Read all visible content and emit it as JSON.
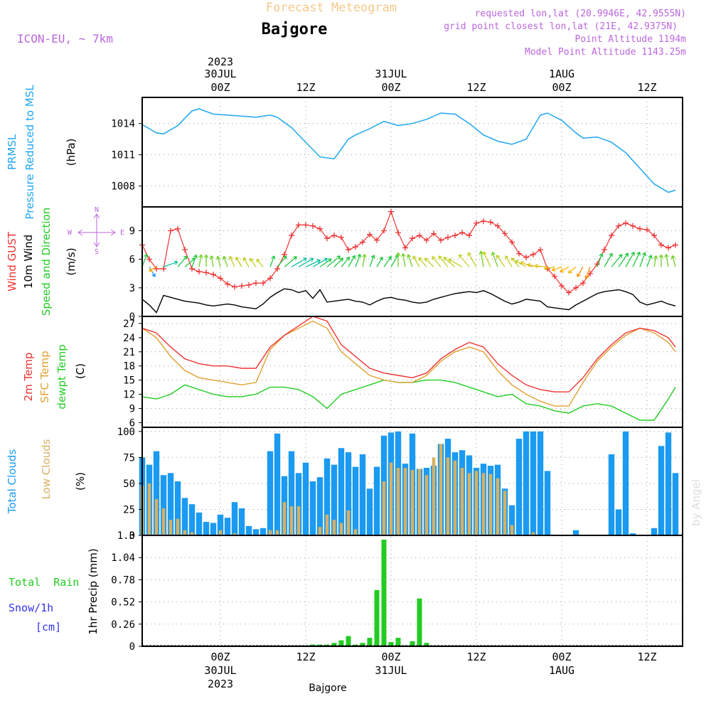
{
  "header": {
    "title": "Forecast Meteogram",
    "location": "Bajgore",
    "model": "ICON-EU, ~ 7km",
    "requested": "requested lon,lat (20.9946E, 42.9555N)",
    "grid_point": "grid point closest lon,lat (21E, 42.9375N)",
    "point_alt": "Point Altitude 1194m",
    "model_alt": "Model Point Altitude 1143.25m",
    "footer": "Bajgore",
    "watermark": "by Angel"
  },
  "time_axis": {
    "top_year": "2023",
    "top_labels": [
      "30JUL\n00Z",
      "12Z",
      "31JUL\n00Z",
      "12Z",
      "1AUG\n00Z",
      "12Z"
    ],
    "bottom_labels": [
      "00Z\n30JUL\n2023",
      "12Z",
      "00Z\n31JUL",
      "12Z",
      "00Z\n1AUG",
      "12Z"
    ],
    "hours": [
      0,
      12,
      24,
      36,
      48,
      60
    ],
    "start_hour": -11,
    "end_hour": 65
  },
  "colors": {
    "pressure": "#1ea7f0",
    "gust": "#ee3333",
    "wind10": "#000000",
    "t2m": "#ee3333",
    "tsfc": "#e0a030",
    "dewpt": "#22cc22",
    "total_clouds": "#1a9af0",
    "low_clouds": "#d8b060",
    "rain": "#22cc22",
    "snow": "#3333ee",
    "label_purple": "#bb66dd",
    "title_orange": "#f5c88a"
  },
  "panels": {
    "pressure": {
      "labels": [
        "PRMSL",
        "Pressure Reduced to MSL",
        "(hPa)"
      ],
      "ticks": [
        "1008",
        "1011",
        "1014"
      ]
    },
    "wind": {
      "labels": [
        "Wind GUST",
        "10m Wind",
        "Speed and Direction",
        "(m/s)"
      ],
      "ticks": [
        "0",
        "3",
        "6",
        "9"
      ],
      "compass": {
        "n": "N",
        "s": "S",
        "e": "E",
        "w": "W"
      }
    },
    "temp": {
      "labels": [
        "2m Temp",
        "SFC Temp",
        "dewpt Temp",
        "(C)"
      ],
      "ticks": [
        "6",
        "9",
        "12",
        "15",
        "18",
        "21",
        "24",
        "27"
      ]
    },
    "clouds": {
      "labels": [
        "Total Clouds",
        "Low Clouds",
        "(%)"
      ],
      "ticks": [
        "0",
        "25",
        "50",
        "75",
        "100"
      ]
    },
    "precip": {
      "labels": [
        "Total  Rain",
        "Snow/1h",
        "[cm]",
        "1hr Precip (mm)"
      ],
      "ticks": [
        "0",
        "0.26",
        "0.52",
        "0.78",
        "1.04",
        "1.3"
      ]
    }
  },
  "chart_data": [
    {
      "type": "line",
      "title": "Pressure Reduced to MSL",
      "ylabel": "(hPa)",
      "ylim": [
        1006,
        1016.5
      ],
      "x_hours": [
        -11,
        -10,
        -9,
        -8,
        -6,
        -4,
        -3,
        -1,
        1,
        3,
        5,
        7,
        8,
        10,
        12,
        14,
        16,
        18,
        19,
        21,
        23,
        25,
        27,
        29,
        31,
        33,
        35,
        37,
        39,
        41,
        43,
        45,
        46,
        48,
        50,
        51,
        53,
        55,
        57,
        59,
        61,
        63,
        64
      ],
      "series": [
        {
          "name": "PRMSL",
          "values": [
            1013.9,
            1013.5,
            1013.1,
            1013.0,
            1013.8,
            1015.2,
            1015.4,
            1014.9,
            1014.8,
            1014.7,
            1014.6,
            1014.8,
            1014.6,
            1013.6,
            1012.2,
            1010.8,
            1010.6,
            1012.5,
            1012.9,
            1013.5,
            1014.2,
            1013.8,
            1014.0,
            1014.4,
            1015.0,
            1014.9,
            1014.0,
            1012.9,
            1012.3,
            1012.0,
            1012.5,
            1014.8,
            1015.0,
            1014.3,
            1013.1,
            1012.6,
            1012.7,
            1012.2,
            1011.2,
            1009.7,
            1008.2,
            1007.4,
            1007.6
          ]
        }
      ]
    },
    {
      "type": "line",
      "title": "Wind GUST / 10m Wind Speed and Direction",
      "ylabel": "(m/s)",
      "ylim": [
        0,
        11.5
      ],
      "x_hours": [
        -11,
        -10,
        -9,
        -8,
        -7,
        -6,
        -5,
        -4,
        -3,
        -2,
        -1,
        0,
        1,
        2,
        3,
        4,
        5,
        6,
        7,
        8,
        9,
        10,
        11,
        12,
        13,
        14,
        15,
        16,
        17,
        18,
        19,
        20,
        21,
        22,
        23,
        24,
        25,
        26,
        27,
        28,
        29,
        30,
        31,
        32,
        33,
        34,
        35,
        36,
        37,
        38,
        39,
        40,
        41,
        42,
        43,
        44,
        45,
        46,
        47,
        48,
        49,
        50,
        51,
        52,
        53,
        54,
        55,
        56,
        57,
        58,
        59,
        60,
        61,
        62,
        63,
        64
      ],
      "series": [
        {
          "name": "Wind GUST",
          "values": [
            7.5,
            6.0,
            5.0,
            5.0,
            9.0,
            9.2,
            7.0,
            5.0,
            4.7,
            4.6,
            4.4,
            4.0,
            3.4,
            3.1,
            3.2,
            3.3,
            3.5,
            3.5,
            4.0,
            5.0,
            6.5,
            8.5,
            9.6,
            9.6,
            9.5,
            9.2,
            8.2,
            8.5,
            8.3,
            7.0,
            7.3,
            7.8,
            8.6,
            8.0,
            9.0,
            11.0,
            8.8,
            7.2,
            8.2,
            8.5,
            8.0,
            8.7,
            8.0,
            8.3,
            8.5,
            8.8,
            8.5,
            9.8,
            10.0,
            9.9,
            9.5,
            8.7,
            7.8,
            6.6,
            6.2,
            6.5,
            7.0,
            5.0,
            4.2,
            3.2,
            2.5,
            3.0,
            3.5,
            4.5,
            5.5,
            7.0,
            8.5,
            9.5,
            9.8,
            9.5,
            9.2,
            9.1,
            8.5,
            7.5,
            7.2,
            7.5
          ]
        },
        {
          "name": "10m Wind",
          "values": [
            1.8,
            1.2,
            0.4,
            2.2,
            2.0,
            1.8,
            1.6,
            1.5,
            1.4,
            1.2,
            1.1,
            1.2,
            1.3,
            1.2,
            1.0,
            0.9,
            0.8,
            1.3,
            2.0,
            2.5,
            2.9,
            2.8,
            2.5,
            2.7,
            1.9,
            2.8,
            1.5,
            1.6,
            1.7,
            1.8,
            1.6,
            1.5,
            1.2,
            1.6,
            1.9,
            2.0,
            1.8,
            1.7,
            1.5,
            1.4,
            1.5,
            1.8,
            2.0,
            2.2,
            2.4,
            2.5,
            2.6,
            2.5,
            2.7,
            2.4,
            2.0,
            1.6,
            1.3,
            1.5,
            1.8,
            1.7,
            1.6,
            1.0,
            0.9,
            0.8,
            0.7,
            1.2,
            1.6,
            2.0,
            2.4,
            2.6,
            2.7,
            2.8,
            2.6,
            2.3,
            1.5,
            1.2,
            1.4,
            1.6,
            1.3,
            1.1
          ]
        }
      ],
      "direction_arrows_hours": [
        -11,
        -10,
        -9,
        -8,
        -6,
        -5,
        -4,
        -3,
        -2,
        -1,
        0,
        1,
        2,
        3,
        4,
        5,
        6,
        7,
        8,
        9,
        10,
        11,
        12,
        13,
        14,
        15,
        16,
        17,
        18,
        19,
        20,
        21,
        22,
        23,
        24,
        25,
        26,
        27,
        28,
        29,
        30,
        31,
        32,
        33,
        34,
        35,
        36,
        37,
        38,
        39,
        40,
        41,
        42,
        43,
        44,
        45,
        46,
        47,
        48,
        49,
        50,
        51,
        52,
        53,
        54,
        55,
        56,
        57,
        58,
        59,
        60,
        61,
        62,
        63,
        64
      ],
      "direction_arrows_deg": [
        200,
        330,
        60,
        250,
        220,
        230,
        200,
        190,
        180,
        170,
        165,
        160,
        155,
        150,
        150,
        145,
        140,
        200,
        220,
        230,
        240,
        240,
        245,
        240,
        235,
        230,
        225,
        220,
        210,
        200,
        190,
        200,
        210,
        215,
        210,
        180,
        170,
        160,
        150,
        140,
        135,
        140,
        140,
        130,
        120,
        140,
        150,
        170,
        155,
        160,
        145,
        150,
        140,
        120,
        110,
        100,
        95,
        80,
        70,
        60,
        50,
        30,
        20,
        200,
        210,
        220,
        215,
        210,
        205,
        200,
        200,
        190,
        180,
        170,
        165,
        160
      ]
    },
    {
      "type": "line",
      "title": "2m Temp / SFC Temp / dewpt Temp",
      "ylabel": "(C)",
      "ylim": [
        5,
        28.5
      ],
      "x_hours": [
        -11,
        -9,
        -7,
        -5,
        -3,
        -1,
        1,
        3,
        5,
        7,
        9,
        11,
        13,
        15,
        17,
        19,
        21,
        23,
        25,
        27,
        29,
        31,
        33,
        35,
        37,
        39,
        41,
        43,
        45,
        47,
        49,
        51,
        53,
        55,
        57,
        59,
        61,
        63,
        64
      ],
      "series": [
        {
          "name": "2m Temp",
          "values": [
            26.0,
            25.0,
            22.0,
            19.5,
            18.5,
            18.0,
            18.0,
            17.5,
            17.5,
            22.0,
            24.5,
            26.5,
            28.5,
            27.5,
            22.5,
            20.0,
            17.5,
            16.5,
            16.0,
            15.5,
            16.5,
            19.5,
            21.5,
            23.0,
            22.0,
            18.5,
            16.0,
            14.0,
            13.0,
            12.5,
            12.5,
            15.5,
            19.5,
            22.5,
            25.0,
            26.0,
            25.5,
            24.0,
            22.0
          ]
        },
        {
          "name": "SFC Temp",
          "values": [
            26.0,
            24.0,
            20.0,
            17.0,
            15.5,
            15.0,
            14.5,
            14.0,
            14.5,
            21.5,
            24.5,
            26.0,
            27.5,
            26.0,
            21.0,
            18.5,
            16.0,
            15.0,
            14.5,
            14.5,
            16.0,
            19.0,
            21.0,
            22.0,
            21.0,
            17.0,
            14.0,
            12.0,
            10.5,
            9.5,
            9.5,
            14.5,
            19.0,
            22.0,
            24.5,
            26.0,
            25.0,
            23.0,
            21.0
          ]
        },
        {
          "name": "dewpt Temp",
          "values": [
            11.5,
            11.0,
            12.0,
            14.0,
            13.0,
            12.0,
            11.5,
            11.5,
            12.0,
            13.5,
            13.5,
            13.0,
            11.5,
            9.0,
            12.0,
            13.0,
            14.0,
            15.0,
            14.5,
            14.5,
            15.0,
            15.0,
            14.5,
            13.5,
            12.5,
            11.5,
            12.0,
            10.0,
            9.5,
            8.5,
            8.0,
            9.5,
            10.0,
            9.5,
            8.0,
            6.5,
            6.5,
            11.0,
            13.5
          ]
        }
      ]
    },
    {
      "type": "bar",
      "title": "Total Clouds / Low Clouds",
      "ylabel": "(%)",
      "ylim": [
        0,
        100
      ],
      "x_hours": [
        -11,
        -10,
        -9,
        -8,
        -7,
        -6,
        -5,
        -4,
        -3,
        -2,
        -1,
        0,
        1,
        2,
        3,
        4,
        5,
        6,
        7,
        8,
        9,
        10,
        11,
        12,
        13,
        14,
        15,
        16,
        17,
        18,
        19,
        20,
        21,
        22,
        23,
        24,
        25,
        26,
        27,
        28,
        29,
        30,
        31,
        32,
        33,
        34,
        35,
        36,
        37,
        38,
        39,
        40,
        41,
        42,
        43,
        44,
        45,
        46,
        47,
        48,
        49,
        50,
        51,
        52,
        53,
        54,
        55,
        56,
        57,
        58,
        59,
        60,
        61,
        62,
        63,
        64
      ],
      "series": [
        {
          "name": "Total Clouds",
          "values": [
            75,
            68,
            81,
            58,
            60,
            52,
            36,
            30,
            22,
            13,
            12,
            20,
            17,
            32,
            26,
            9,
            6,
            7,
            81,
            98,
            57,
            81,
            60,
            70,
            52,
            56,
            74,
            68,
            84,
            80,
            66,
            78,
            45,
            66,
            96,
            99,
            100,
            69,
            98,
            64,
            65,
            67,
            88,
            93,
            80,
            82,
            77,
            65,
            69,
            67,
            68,
            45,
            29,
            93,
            100,
            100,
            100,
            62,
            0,
            0,
            0,
            5,
            0,
            0,
            0,
            0,
            78,
            25,
            100,
            2,
            0,
            0,
            7,
            86,
            99,
            60
          ]
        },
        {
          "name": "Low Clouds",
          "values": [
            48,
            50,
            35,
            26,
            15,
            16,
            5,
            3,
            0,
            0,
            0,
            5,
            0,
            2,
            0,
            0,
            0,
            0,
            5,
            5,
            32,
            28,
            28,
            0,
            0,
            8,
            20,
            15,
            12,
            24,
            6,
            0,
            0,
            0,
            52,
            70,
            65,
            65,
            63,
            64,
            58,
            75,
            88,
            75,
            72,
            65,
            60,
            62,
            60,
            59,
            55,
            43,
            10,
            0,
            0,
            3,
            0,
            0,
            0,
            0,
            0,
            0,
            0,
            0,
            0,
            0,
            0,
            0,
            0,
            0,
            0,
            0,
            0,
            0,
            0,
            0
          ]
        }
      ]
    },
    {
      "type": "bar",
      "title": "1hr Precip",
      "ylabel": "1hr Precip (mm)",
      "ylim": [
        0,
        1.3
      ],
      "x_hours": [
        12,
        13,
        14,
        15,
        16,
        17,
        18,
        19,
        20,
        21,
        22,
        23,
        24,
        25,
        26,
        27,
        28,
        29,
        30,
        31,
        32,
        33,
        34
      ],
      "series": [
        {
          "name": "Total Rain",
          "values": [
            0.01,
            0.02,
            0.02,
            0.02,
            0.04,
            0.07,
            0.12,
            0.02,
            0.04,
            0.1,
            0.66,
            1.25,
            0.05,
            0.1,
            0.01,
            0.06,
            0.56,
            0.04,
            0,
            0,
            0,
            0,
            0
          ]
        }
      ]
    }
  ]
}
